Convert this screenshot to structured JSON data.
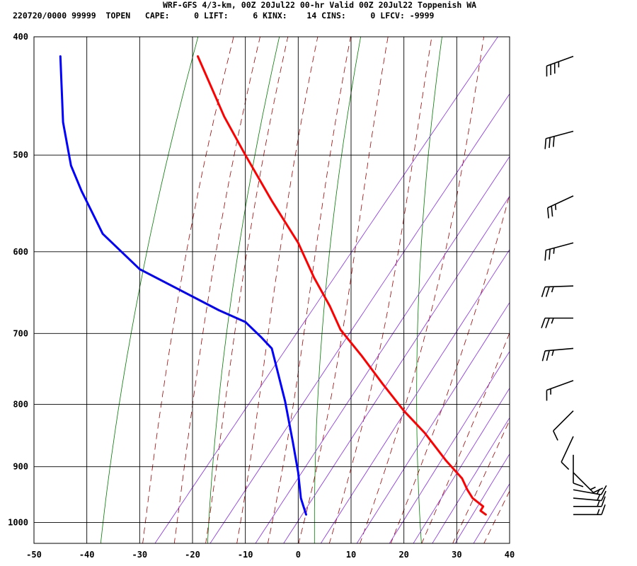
{
  "header": {
    "title": "WRF-GFS 4/3-km, 00Z 20Jul22 00-hr Valid 00Z 20Jul22 Toppenish WA",
    "stats": "220720/0000 99999  TOPEN   CAPE:     0 LIFT:     6 KINX:    14 CINS:     0 LFCV: -9999"
  },
  "chart_data": {
    "type": "line",
    "xlabel": "",
    "ylabel": "",
    "xlim": [
      -50,
      40
    ],
    "ylim": [
      1040,
      400
    ],
    "x_ticks": [
      "-50",
      "-40",
      "-30",
      "-20",
      "-10",
      "0",
      "10",
      "20",
      "30",
      "40"
    ],
    "x_tick_values": [
      -50,
      -40,
      -30,
      -20,
      -10,
      0,
      10,
      20,
      30,
      40
    ],
    "y_ticks": [
      "400",
      "500",
      "600",
      "700",
      "800",
      "900",
      "1000"
    ],
    "y_tick_values": [
      400,
      500,
      600,
      700,
      800,
      900,
      1000
    ],
    "grid": true,
    "y_scale": "log-pressure",
    "series": [
      {
        "name": "",
        "color": "#ff0000",
        "points": [
          [
            -19,
            415
          ],
          [
            -14,
            465
          ],
          [
            -10,
            500
          ],
          [
            -5,
            545
          ],
          [
            0,
            590
          ],
          [
            3,
            630
          ],
          [
            6,
            665
          ],
          [
            8,
            695
          ],
          [
            12,
            730
          ],
          [
            16,
            770
          ],
          [
            20,
            810
          ],
          [
            24,
            845
          ],
          [
            28,
            890
          ],
          [
            31,
            920
          ],
          [
            32,
            940
          ],
          [
            33,
            955
          ],
          [
            35,
            970
          ],
          [
            34.5,
            978
          ],
          [
            35.5,
            985
          ]
        ]
      },
      {
        "name": "",
        "color": "#0000ff",
        "points": [
          [
            -45,
            415
          ],
          [
            -44.5,
            470
          ],
          [
            -43,
            510
          ],
          [
            -41,
            535
          ],
          [
            -37,
            580
          ],
          [
            -30,
            620
          ],
          [
            -15,
            670
          ],
          [
            -10,
            685
          ],
          [
            -7,
            705
          ],
          [
            -5,
            720
          ],
          [
            -2.5,
            795
          ],
          [
            -1,
            860
          ],
          [
            0,
            910
          ],
          [
            0.5,
            955
          ],
          [
            1,
            970
          ],
          [
            1.5,
            985
          ]
        ]
      }
    ],
    "wind_barbs": [
      {
        "p": 415,
        "dir": 250,
        "kt": 35
      },
      {
        "p": 478,
        "dir": 255,
        "kt": 30
      },
      {
        "p": 540,
        "dir": 245,
        "kt": 25
      },
      {
        "p": 590,
        "dir": 255,
        "kt": 25
      },
      {
        "p": 640,
        "dir": 268,
        "kt": 25
      },
      {
        "p": 680,
        "dir": 270,
        "kt": 25
      },
      {
        "p": 720,
        "dir": 265,
        "kt": 25
      },
      {
        "p": 765,
        "dir": 250,
        "kt": 15
      },
      {
        "p": 810,
        "dir": 225,
        "kt": 10
      },
      {
        "p": 850,
        "dir": 205,
        "kt": 10
      },
      {
        "p": 880,
        "dir": 180,
        "kt": 10
      },
      {
        "p": 910,
        "dir": 135,
        "kt": 15
      },
      {
        "p": 940,
        "dir": 100,
        "kt": 15
      },
      {
        "p": 955,
        "dir": 95,
        "kt": 15
      },
      {
        "p": 970,
        "dir": 90,
        "kt": 15
      },
      {
        "p": 985,
        "dir": 90,
        "kt": 15
      }
    ]
  }
}
